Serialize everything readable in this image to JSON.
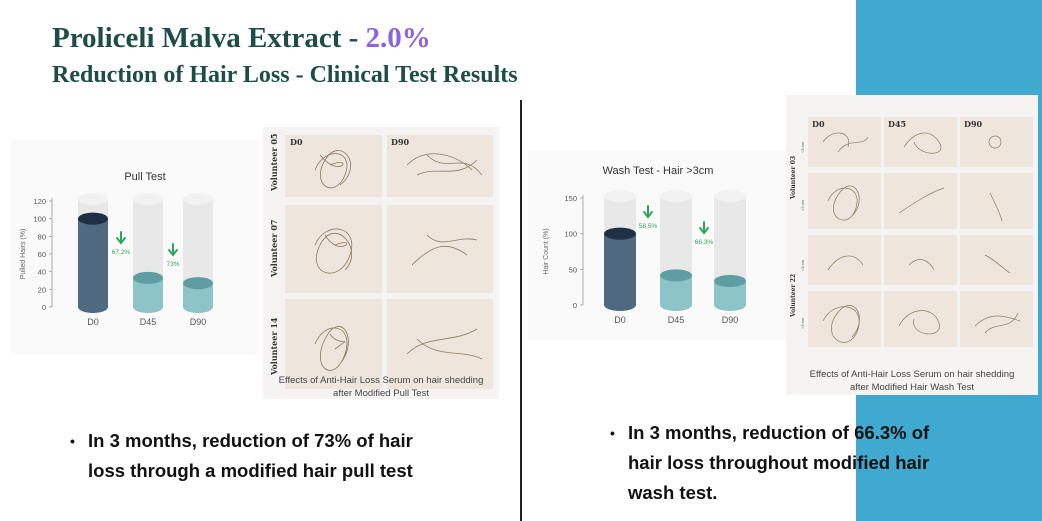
{
  "header": {
    "title_main": "Proliceli Malva Extract - ",
    "title_highlight": "2.0%",
    "subtitle": "Reduction of Hair Loss - Clinical Test Results"
  },
  "colors": {
    "title": "#1e4d47",
    "highlight": "#8a63e0",
    "accent_block": "#3fa9cf",
    "bar_d0": "#4f6980",
    "bar_treated": "#8cc4c8",
    "arrow": "#2ea55a"
  },
  "chart_data": [
    {
      "type": "bar",
      "title": "Pull Test",
      "ylabel": "Pulled Hairs (%)",
      "categories": [
        "D0",
        "D45",
        "D90"
      ],
      "values": [
        100,
        33,
        27
      ],
      "ylim": [
        0,
        120
      ],
      "yticks": [
        "0",
        "20",
        "40",
        "60",
        "80",
        "100",
        "120"
      ],
      "annotations": [
        "67,2%",
        "73%"
      ],
      "grid": false
    },
    {
      "type": "bar",
      "title": "Wash Test - Hair >3cm",
      "ylabel": "Hair Count (%)",
      "categories": [
        "D0",
        "D45",
        "D90"
      ],
      "values": [
        100,
        41.5,
        33.7
      ],
      "ylim": [
        0,
        150
      ],
      "yticks": [
        "0",
        "50",
        "100",
        "150"
      ],
      "annotations": [
        "58,5%",
        "66,3%"
      ],
      "grid": false
    }
  ],
  "left_photos": {
    "col_labels": [
      "D0",
      "D90"
    ],
    "row_labels": [
      "Volunteer 05",
      "Volunteer 07",
      "Volunteer 14"
    ],
    "caption_line1": "Effects of Anti-Hair Loss Serum on hair shedding",
    "caption_line2": "after Modified Pull Test"
  },
  "right_photos": {
    "col_labels": [
      "D0",
      "D45",
      "D90"
    ],
    "row_labels": [
      "Volunteer 03",
      "Volunteer 22"
    ],
    "size_labels": [
      "<3 cm",
      ">3 cm",
      "<3 cm",
      ">3 cm"
    ],
    "caption_line1": "Effects of Anti-Hair Loss Serum on hair shedding",
    "caption_line2": "after Modified Hair Wash Test"
  },
  "bullets": {
    "left_line1": "In 3 months, reduction of 73% of hair",
    "left_line2": "loss through a modified hair pull test",
    "right_line1": "In 3 months, reduction of 66.3% of",
    "right_line2": "hair loss throughout modified hair",
    "right_line3": "wash test.",
    "marker": "•"
  }
}
